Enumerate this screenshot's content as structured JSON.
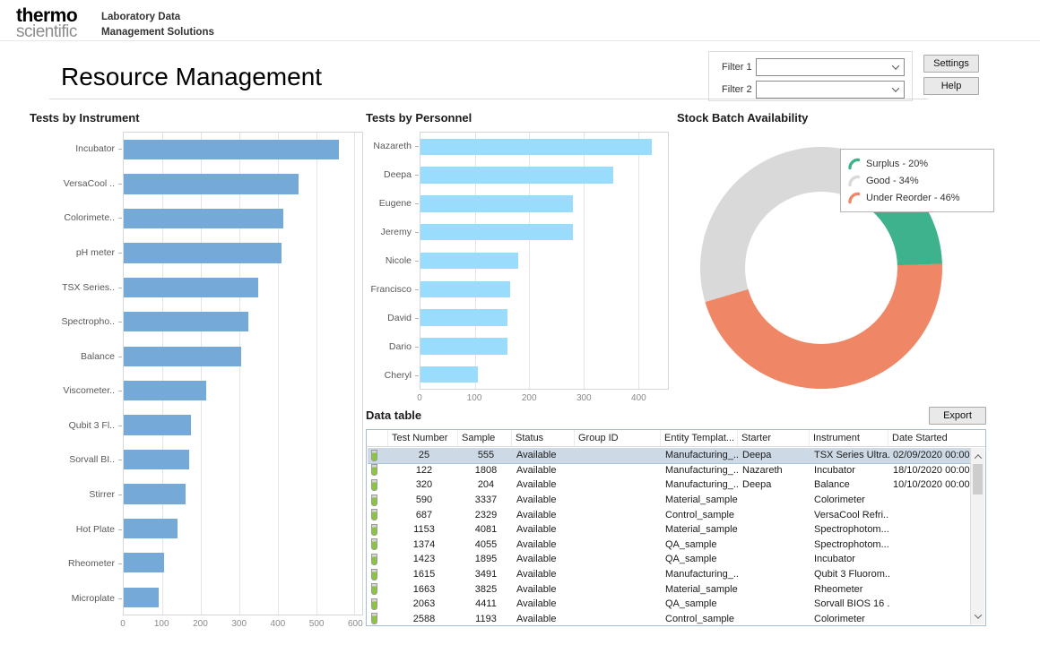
{
  "header": {
    "logo_line1": "thermo",
    "logo_line2": "scientific",
    "brand_red": "#e4132c",
    "product_line1": "Laboratory Data",
    "product_line2": "Management Solutions"
  },
  "toolbar": {
    "filter1_label": "Filter 1",
    "filter2_label": "Filter 2",
    "filter1_value": "",
    "filter2_value": "",
    "settings_label": "Settings",
    "help_label": "Help"
  },
  "page_title": "Resource Management",
  "chart_data": [
    {
      "type": "bar",
      "orientation": "horizontal",
      "title": "Tests by Instrument",
      "bar_color": "#74a9d8",
      "xlim": [
        0,
        620
      ],
      "xticks": [
        0,
        100,
        200,
        300,
        400,
        500,
        600
      ],
      "categories": [
        "Incubator",
        "VersaCool ..",
        "Colorimete..",
        "pH meter",
        "TSX Series..",
        "Spectropho..",
        "Balance",
        "Viscometer..",
        "Qubit 3 Fl..",
        "Sorvall BI..",
        "Stirrer",
        "Hot Plate",
        "Rheometer",
        "Microplate"
      ],
      "values": [
        560,
        455,
        415,
        410,
        350,
        325,
        305,
        215,
        175,
        170,
        160,
        140,
        105,
        90
      ]
    },
    {
      "type": "bar",
      "orientation": "horizontal",
      "title": "Tests by Personnel",
      "bar_color": "#9adcfb",
      "xlim": [
        0,
        455
      ],
      "xticks": [
        0,
        100,
        200,
        300,
        400
      ],
      "categories": [
        "Nazareth",
        "Deepa",
        "Eugene",
        "Jeremy",
        "Nicole",
        "Francisco",
        "David",
        "Dario",
        "Cheryl"
      ],
      "values": [
        425,
        355,
        280,
        280,
        180,
        165,
        160,
        160,
        105
      ]
    },
    {
      "type": "donut",
      "title": "Stock Batch Availability",
      "start_angle_deg": 16,
      "draw_sequence": [
        0,
        2,
        1
      ],
      "slices": [
        {
          "label": "Surplus - 20%",
          "value": 20,
          "color": "#3db28c"
        },
        {
          "label": "Good - 34%",
          "value": 34,
          "color": "#d9d9d9"
        },
        {
          "label": "Under Reorder - 46%",
          "value": 46,
          "color": "#ef8766"
        }
      ],
      "legend_position": "top-right"
    }
  ],
  "table": {
    "title": "Data table",
    "export_label": "Export",
    "columns": [
      "Test Number",
      "Sample",
      "Status",
      "Group ID",
      "Entity Templat...",
      "Starter",
      "Instrument",
      "Date Started"
    ],
    "selected_row": 0,
    "rows": [
      [
        "25",
        "555",
        "Available",
        "",
        "Manufacturing_...",
        "Deepa",
        "TSX Series Ultra...",
        "02/09/2020 00:00"
      ],
      [
        "122",
        "1808",
        "Available",
        "",
        "Manufacturing_...",
        "Nazareth",
        "Incubator",
        "18/10/2020 00:00"
      ],
      [
        "320",
        "204",
        "Available",
        "",
        "Manufacturing_...",
        "Deepa",
        "Balance",
        "10/10/2020 00:00"
      ],
      [
        "590",
        "3337",
        "Available",
        "",
        "Material_sample",
        "",
        "Colorimeter",
        ""
      ],
      [
        "687",
        "2329",
        "Available",
        "",
        "Control_sample",
        "",
        "VersaCool Refri...",
        ""
      ],
      [
        "1153",
        "4081",
        "Available",
        "",
        "Material_sample",
        "",
        "Spectrophotom...",
        ""
      ],
      [
        "1374",
        "4055",
        "Available",
        "",
        "QA_sample",
        "",
        "Spectrophotom...",
        ""
      ],
      [
        "1423",
        "1895",
        "Available",
        "",
        "QA_sample",
        "",
        "Incubator",
        ""
      ],
      [
        "1615",
        "3491",
        "Available",
        "",
        "Manufacturing_...",
        "",
        "Qubit 3 Fluorom...",
        ""
      ],
      [
        "1663",
        "3825",
        "Available",
        "",
        "Material_sample",
        "",
        "Rheometer",
        ""
      ],
      [
        "2063",
        "4411",
        "Available",
        "",
        "QA_sample",
        "",
        "Sorvall BIOS 16 ...",
        ""
      ],
      [
        "2588",
        "1193",
        "Available",
        "",
        "Control_sample",
        "",
        "Colorimeter",
        ""
      ]
    ]
  }
}
